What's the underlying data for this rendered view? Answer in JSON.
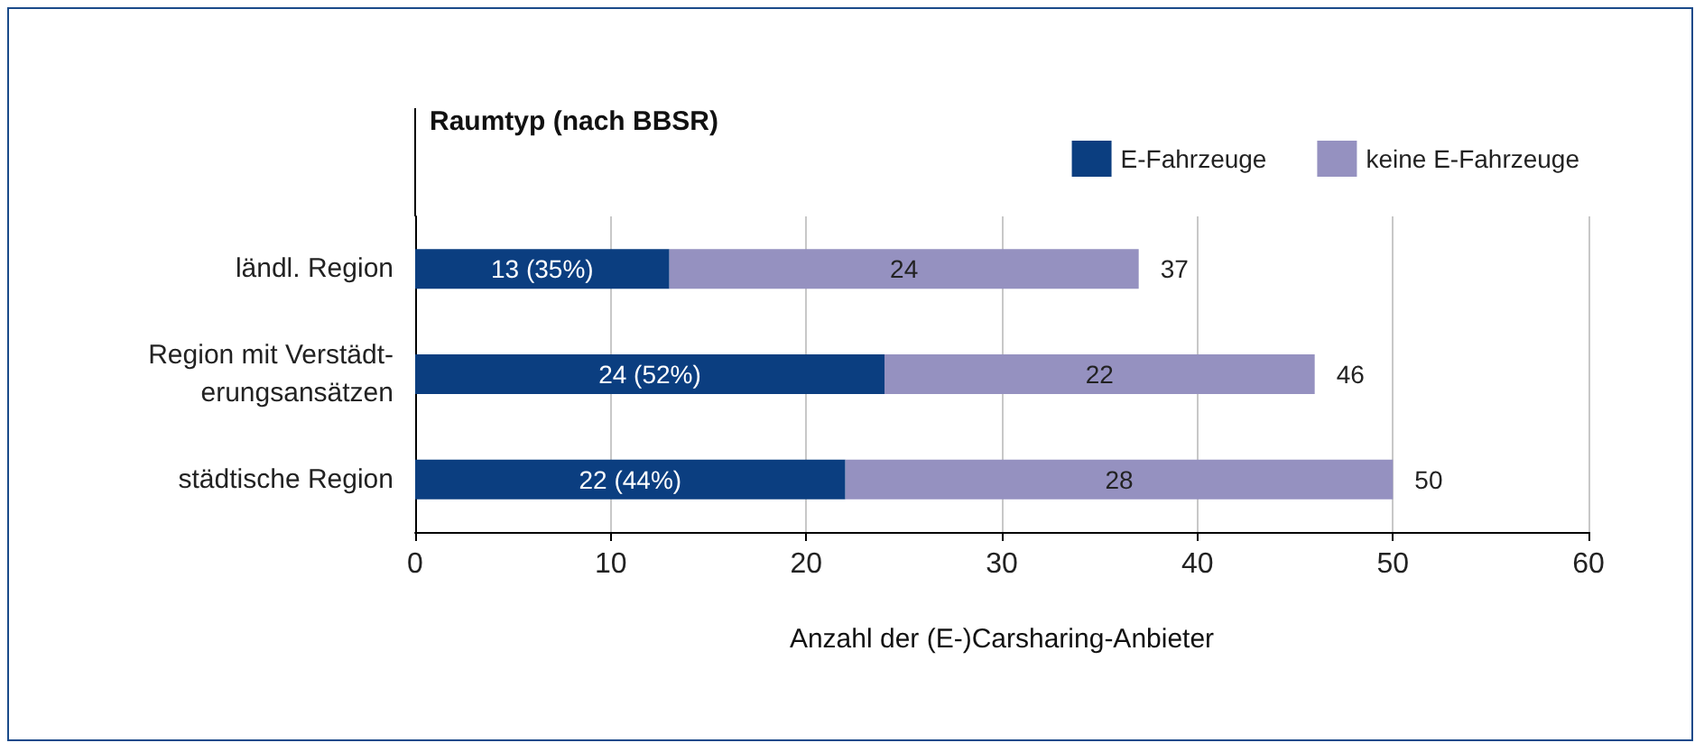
{
  "chart_data": {
    "type": "bar",
    "orientation": "horizontal",
    "stacked": true,
    "ylabel": "Raumtyp (nach BBSR)",
    "xlabel": "Anzahl der (E-)Carsharing-Anbieter",
    "categories": [
      "ländl. Region",
      "Region mit Verstädt-\nerungsansätzen",
      "städtische Region"
    ],
    "series": [
      {
        "name": "E-Fahrzeuge",
        "color": "#0b3e80",
        "values": [
          13,
          24,
          22
        ],
        "value_labels": [
          "13 (35%)",
          "24 (52%)",
          "22 (44%)"
        ]
      },
      {
        "name": "keine E-Fahrzeuge",
        "color": "#9591c0",
        "values": [
          24,
          22,
          28
        ],
        "value_labels": [
          "24",
          "22",
          "28"
        ]
      }
    ],
    "totals": [
      "37",
      "46",
      "50"
    ],
    "xlim": [
      0,
      60
    ],
    "xticks": [
      0,
      10,
      20,
      30,
      40,
      50,
      60
    ],
    "grid": "x",
    "legend": "top right"
  }
}
